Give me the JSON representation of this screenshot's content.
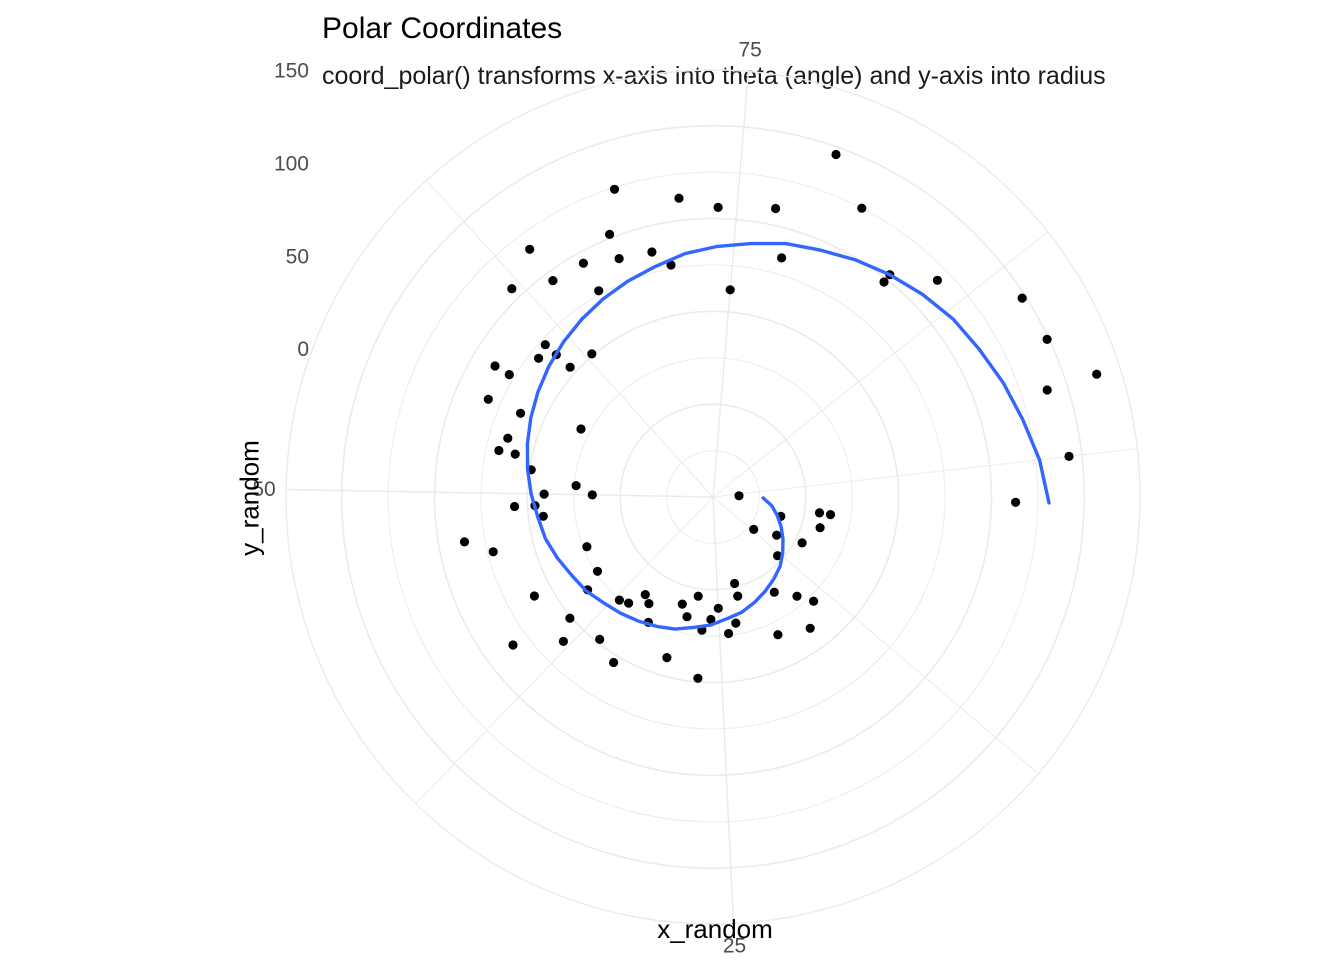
{
  "chart_data": {
    "type": "scatter",
    "coord": "polar",
    "title": "Polar Coordinates",
    "subtitle": "coord_polar() transforms x-axis into theta (angle) and y-axis into radius",
    "xlabel": "x_random",
    "ylabel": "y_random",
    "theta_ticks": [
      25,
      50,
      75
    ],
    "r_ticks": [
      0,
      50,
      100,
      150
    ],
    "xlim": [
      2,
      98
    ],
    "ylim": [
      -50,
      180
    ],
    "grid": true,
    "legend": "none",
    "colors": {
      "points": "#000000",
      "smooth": "#3366ff",
      "grid": "#ebebeb"
    },
    "series": [
      {
        "kind": "points",
        "x": [
          1,
          6,
          4,
          9,
          13,
          6,
          4,
          10,
          12,
          16,
          14,
          15,
          17,
          19,
          23,
          22,
          22,
          24,
          25,
          27,
          27,
          26,
          29,
          28,
          30,
          30,
          34,
          33,
          36,
          36,
          35,
          38,
          37,
          34,
          40,
          39,
          40,
          42,
          41,
          44,
          47,
          46,
          48,
          50,
          49,
          49,
          50,
          53,
          52,
          54,
          56,
          53,
          56,
          58,
          58,
          61,
          61,
          61,
          57,
          60,
          62,
          64,
          64,
          66,
          66,
          68,
          69,
          68,
          70,
          72,
          71,
          74,
          75,
          78,
          77,
          79,
          81,
          84,
          84,
          86,
          89,
          91,
          93,
          93,
          96,
          98,
          51,
          63
        ],
        "y": [
          -36,
          -12,
          14,
          4,
          -3,
          10,
          8,
          -10,
          -22,
          38,
          28,
          20,
          11,
          32,
          19,
          5,
          -2,
          24,
          10,
          22,
          48,
          16,
          16,
          4,
          10,
          40,
          17,
          26,
          48,
          23,
          14,
          62,
          25,
          54,
          34,
          51,
          84,
          60,
          24,
          23,
          86,
          72,
          42,
          41,
          46,
          57,
          15,
          68,
          49,
          65,
          63,
          59,
          82,
          78,
          87,
          54,
          72,
          64,
          30,
          70,
          106,
          95,
          116,
          94,
          77,
          102,
          124,
          88,
          86,
          112,
          77,
          106,
          62,
          84,
          109,
          146,
          125,
          98,
          103,
          118,
          148,
          149,
          167,
          139,
          143,
          113,
          24,
          51
        ]
      },
      {
        "kind": "smooth",
        "x": [
          2,
          4,
          6,
          8,
          10,
          12,
          14,
          16,
          18,
          20,
          22,
          24,
          26,
          28,
          30,
          32,
          34,
          36,
          38,
          40,
          42,
          44,
          46,
          48,
          50,
          52,
          54,
          56,
          58,
          60,
          62,
          64,
          66,
          68,
          70,
          72,
          74,
          76,
          78,
          80,
          82,
          84,
          86,
          88,
          90,
          92,
          94,
          96,
          98
        ],
        "y": [
          -23,
          -18,
          -14,
          -10,
          -6,
          -2,
          2,
          5,
          8,
          11,
          14,
          16,
          19,
          21,
          24,
          26,
          28,
          30,
          32,
          35,
          37,
          40,
          43,
          45,
          48,
          51,
          54,
          57,
          60,
          63,
          66,
          69,
          72,
          75,
          78,
          82,
          85,
          88,
          92,
          95,
          99,
          103,
          107,
          111,
          114,
          118,
          122,
          127,
          131
        ]
      }
    ]
  }
}
